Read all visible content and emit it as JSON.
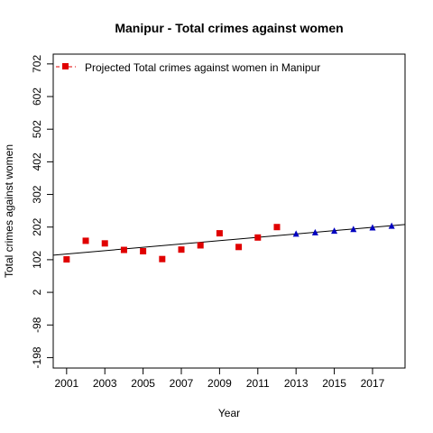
{
  "chart_data": {
    "type": "scatter",
    "title": "Manipur  -  Total crimes against women",
    "xlabel": "Year",
    "ylabel": "Total crimes against women",
    "xlim": [
      2000.3,
      2018.7
    ],
    "ylim": [
      -230,
      732
    ],
    "x_ticks": [
      2001,
      2003,
      2005,
      2007,
      2009,
      2011,
      2013,
      2015,
      2017
    ],
    "y_ticks": [
      -198,
      -98,
      2,
      102,
      202,
      302,
      402,
      502,
      602,
      702
    ],
    "grid": false,
    "legend": {
      "position": "top-left",
      "label": "Projected  Total crimes against women  in  Manipur"
    },
    "series": [
      {
        "marker": "square",
        "color": "#e00000",
        "x": [
          2001,
          2002,
          2003,
          2004,
          2005,
          2006,
          2007,
          2008,
          2009,
          2010,
          2011,
          2012
        ],
        "y": [
          103,
          160,
          152,
          132,
          128,
          104,
          133,
          146,
          183,
          141,
          170,
          202
        ]
      },
      {
        "marker": "triangle",
        "color": "#0000c0",
        "x": [
          2013,
          2014,
          2015,
          2016,
          2017,
          2018
        ],
        "y": [
          181,
          185,
          190,
          195,
          200,
          205
        ]
      }
    ],
    "trend_line": {
      "color": "#000000",
      "x": [
        2000.3,
        2018.7
      ],
      "y": [
        116,
        210
      ]
    }
  }
}
